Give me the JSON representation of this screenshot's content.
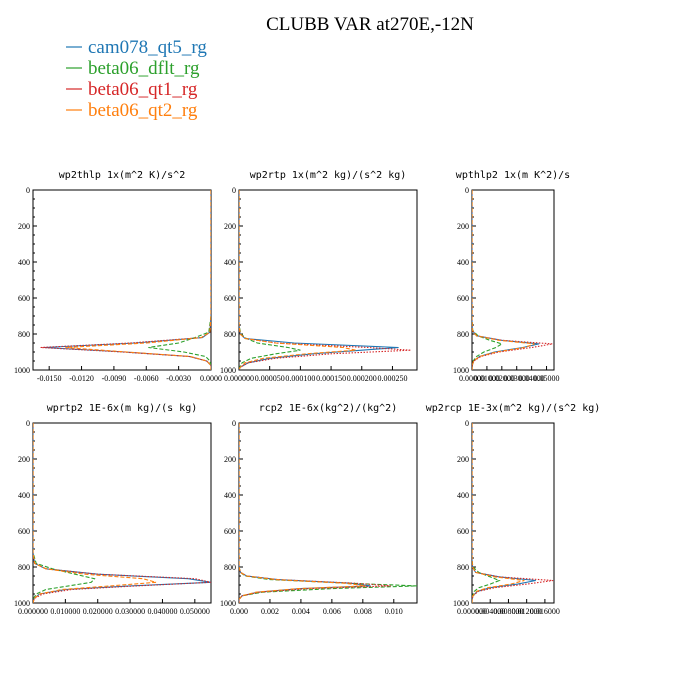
{
  "figure_title": "CLUBB VAR at270E,-12N",
  "legend": [
    {
      "label": "cam078_qt5_rg",
      "color": "#1f77b4"
    },
    {
      "label": "beta06_dflt_rg",
      "color": "#2ca02c"
    },
    {
      "label": "beta06_qt1_rg",
      "color": "#d62728"
    },
    {
      "label": "beta06_qt2_rg",
      "color": "#ff7f0e"
    }
  ],
  "chart_data": [
    {
      "type": "line",
      "title": "wp2thlp  1x(m^2 K)/s^2",
      "xlim": [
        -0.0165,
        0.0
      ],
      "xticks": [
        -0.015,
        -0.012,
        -0.009,
        -0.006,
        -0.003,
        0.0
      ],
      "xtick_labels": [
        "-0.0150",
        "-0.0120",
        "-0.0090",
        "-0.0060",
        "-0.0030",
        "0.0000"
      ],
      "ylim": [
        0,
        1000
      ],
      "yticks": [
        0,
        200,
        400,
        600,
        800,
        1000
      ],
      "ytick_labels": [
        "0",
        "200",
        "400",
        "600",
        "800",
        "1000"
      ],
      "y": [
        0,
        700,
        790,
        820,
        850,
        875,
        900,
        925,
        950,
        975,
        1000
      ],
      "series": [
        {
          "name": "cam078_qt5_rg",
          "values": [
            0,
            0,
            -0.0001,
            -0.0008,
            -0.007,
            -0.0155,
            -0.008,
            -0.002,
            -0.0004,
            0,
            0
          ]
        },
        {
          "name": "beta06_dflt_rg",
          "values": [
            0,
            0,
            -0.0002,
            -0.0015,
            -0.003,
            -0.0058,
            -0.0025,
            -0.0005,
            -0.0001,
            0,
            0
          ]
        },
        {
          "name": "beta06_qt1_rg",
          "values": [
            0,
            0,
            -0.0001,
            -0.0009,
            -0.0075,
            -0.0158,
            -0.0082,
            -0.002,
            -0.0004,
            0,
            0
          ]
        },
        {
          "name": "beta06_qt2_rg",
          "values": [
            0,
            0,
            -0.0001,
            -0.0009,
            -0.006,
            -0.0135,
            -0.0078,
            -0.0019,
            -0.0004,
            0,
            0
          ]
        }
      ]
    },
    {
      "type": "line",
      "title": "wp2rtp  1x(m^2 kg)/(s^2 kg)",
      "xlim": [
        0,
        0.00029
      ],
      "xticks": [
        0,
        5e-05,
        0.0001,
        0.00015,
        0.0002,
        0.00025
      ],
      "xtick_labels": [
        "0.000000",
        "0.000050",
        "0.000100",
        "0.000150",
        "0.000200",
        "0.000250"
      ],
      "ylim": [
        0,
        1000
      ],
      "yticks": [
        0,
        200,
        400,
        600,
        800,
        1000
      ],
      "ytick_labels": [
        "0",
        "200",
        "400",
        "600",
        "800",
        "1000"
      ],
      "y": [
        0,
        750,
        800,
        825,
        850,
        875,
        890,
        910,
        935,
        960,
        985,
        1000
      ],
      "series": [
        {
          "name": "cam078_qt5_rg",
          "values": [
            0,
            0,
            2e-06,
            1e-05,
            9e-05,
            0.00026,
            0.0002,
            0.00012,
            5e-05,
            1.5e-05,
            2e-06,
            0
          ]
        },
        {
          "name": "beta06_dflt_rg",
          "values": [
            0,
            0,
            3e-06,
            1.2e-05,
            3e-05,
            8e-05,
            0.0001,
            6e-05,
            2e-05,
            5e-06,
            1e-06,
            0
          ]
        },
        {
          "name": "beta06_qt1_rg",
          "values": [
            0,
            0,
            2e-06,
            1e-05,
            6e-05,
            0.00021,
            0.00028,
            0.00015,
            6e-05,
            1.5e-05,
            2e-06,
            0
          ]
        },
        {
          "name": "beta06_qt2_rg",
          "values": [
            0,
            0,
            2e-06,
            1e-05,
            6e-05,
            0.00017,
            0.00019,
            0.00011,
            4e-05,
            1e-05,
            2e-06,
            0
          ]
        }
      ]
    },
    {
      "type": "line",
      "title": "wpthlp2  1x(m K^2)/s",
      "xlim": [
        0,
        0.055
      ],
      "xticks": [
        0,
        0.01,
        0.02,
        0.03,
        0.04,
        0.05
      ],
      "xtick_labels": [
        "0.00000",
        "0.01000",
        "0.02000",
        "0.03000",
        "0.04000",
        "0.05000"
      ],
      "ylim": [
        0,
        1000
      ],
      "yticks": [
        0,
        200,
        400,
        600,
        800,
        1000
      ],
      "ytick_labels": [
        "0",
        "200",
        "400",
        "600",
        "800",
        "1000"
      ],
      "y": [
        0,
        720,
        780,
        810,
        835,
        855,
        875,
        900,
        925,
        950,
        975,
        1000
      ],
      "series": [
        {
          "name": "cam078_qt5_rg",
          "values": [
            0,
            0,
            0.0003,
            0.003,
            0.02,
            0.045,
            0.034,
            0.015,
            0.005,
            0.001,
            0.0002,
            0
          ]
        },
        {
          "name": "beta06_dflt_rg",
          "values": [
            0,
            0,
            0.0005,
            0.004,
            0.012,
            0.02,
            0.016,
            0.008,
            0.003,
            0.0008,
            0.0001,
            0
          ]
        },
        {
          "name": "beta06_qt1_rg",
          "values": [
            0,
            0,
            0.0003,
            0.003,
            0.02,
            0.054,
            0.04,
            0.018,
            0.006,
            0.0012,
            0.0002,
            0
          ]
        },
        {
          "name": "beta06_qt2_rg",
          "values": [
            0,
            0,
            0.0003,
            0.003,
            0.018,
            0.042,
            0.035,
            0.016,
            0.005,
            0.001,
            0.0002,
            0
          ]
        }
      ]
    },
    {
      "type": "line",
      "title": "wprtp2  1E-6x(m kg)/(s kg)",
      "xlim": [
        0,
        0.055
      ],
      "xticks": [
        0,
        0.01,
        0.02,
        0.03,
        0.04,
        0.05
      ],
      "xtick_labels": [
        "0.000000",
        "0.010000",
        "0.020000",
        "0.030000",
        "0.040000",
        "0.050000"
      ],
      "ylim": [
        0,
        1000
      ],
      "yticks": [
        0,
        200,
        400,
        600,
        800,
        1000
      ],
      "ytick_labels": [
        "0",
        "200",
        "400",
        "600",
        "800",
        "1000"
      ],
      "y": [
        0,
        720,
        780,
        810,
        840,
        865,
        885,
        905,
        925,
        950,
        975,
        1000
      ],
      "series": [
        {
          "name": "cam078_qt5_rg",
          "values": [
            0,
            0,
            0.0005,
            0.004,
            0.02,
            0.048,
            0.055,
            0.03,
            0.01,
            0.002,
            0.0003,
            0
          ]
        },
        {
          "name": "beta06_dflt_rg",
          "values": [
            0,
            0,
            0.001,
            0.006,
            0.013,
            0.019,
            0.018,
            0.011,
            0.004,
            0.001,
            0.0002,
            0
          ]
        },
        {
          "name": "beta06_qt1_rg",
          "values": [
            0,
            0,
            0.0005,
            0.004,
            0.02,
            0.05,
            0.055,
            0.032,
            0.012,
            0.003,
            0.0004,
            0
          ]
        },
        {
          "name": "beta06_qt2_rg",
          "values": [
            0,
            0,
            0.0005,
            0.004,
            0.016,
            0.034,
            0.038,
            0.024,
            0.009,
            0.002,
            0.0003,
            0
          ]
        }
      ]
    },
    {
      "type": "line",
      "title": "rcp2  1E-6x(kg^2)/(kg^2)",
      "xlim": [
        0,
        0.0115
      ],
      "xticks": [
        0,
        0.002,
        0.004,
        0.006,
        0.008,
        0.01
      ],
      "xtick_labels": [
        "0.000",
        "0.002",
        "0.004",
        "0.006",
        "0.008",
        "0.010"
      ],
      "ylim": [
        0,
        1000
      ],
      "yticks": [
        0,
        200,
        400,
        600,
        800,
        1000
      ],
      "ytick_labels": [
        "0",
        "200",
        "400",
        "600",
        "800",
        "1000"
      ],
      "y": [
        0,
        800,
        830,
        850,
        870,
        890,
        905,
        920,
        940,
        960,
        980,
        1000
      ],
      "series": [
        {
          "name": "cam078_qt5_rg",
          "values": [
            0,
            0,
            0.0001,
            0.0005,
            0.0025,
            0.0072,
            0.0085,
            0.004,
            0.0012,
            0.0002,
            0,
            0
          ]
        },
        {
          "name": "beta06_dflt_rg",
          "values": [
            0,
            0,
            0.0001,
            0.0004,
            0.002,
            0.007,
            0.0115,
            0.006,
            0.0015,
            0.0002,
            0,
            0
          ]
        },
        {
          "name": "beta06_qt1_rg",
          "values": [
            0,
            0,
            0.0001,
            0.0005,
            0.0025,
            0.0075,
            0.0098,
            0.0045,
            0.0013,
            0.0002,
            0,
            0
          ]
        },
        {
          "name": "beta06_qt2_rg",
          "values": [
            0,
            0,
            0.0001,
            0.0005,
            0.0024,
            0.0068,
            0.0082,
            0.0038,
            0.0011,
            0.0002,
            0,
            0
          ]
        }
      ]
    },
    {
      "type": "line",
      "title": "wp2rcp  1E-3x(m^2 kg)/(s^2 kg)",
      "xlim": [
        0,
        0.018
      ],
      "xticks": [
        0,
        0.004,
        0.008,
        0.012,
        0.016
      ],
      "xtick_labels": [
        "0.000000",
        "0.004000",
        "0.008000",
        "0.012000",
        "0.016000"
      ],
      "ylim": [
        0,
        1000
      ],
      "yticks": [
        0,
        200,
        400,
        600,
        800,
        1000
      ],
      "ytick_labels": [
        "0",
        "200",
        "400",
        "600",
        "800",
        "1000"
      ],
      "y": [
        0,
        760,
        800,
        830,
        855,
        875,
        895,
        915,
        935,
        960,
        985,
        1000
      ],
      "series": [
        {
          "name": "cam078_qt5_rg",
          "values": [
            0,
            0,
            0.0001,
            0.0008,
            0.006,
            0.014,
            0.01,
            0.004,
            0.0012,
            0.0002,
            0,
            0
          ]
        },
        {
          "name": "beta06_dflt_rg",
          "values": [
            0,
            0,
            0.0002,
            0.0015,
            0.004,
            0.006,
            0.004,
            0.0015,
            0.0005,
            0.0001,
            0,
            0
          ]
        },
        {
          "name": "beta06_qt1_rg",
          "values": [
            0,
            0,
            0.0001,
            0.0008,
            0.006,
            0.0178,
            0.012,
            0.005,
            0.0014,
            0.0002,
            0,
            0
          ]
        },
        {
          "name": "beta06_qt2_rg",
          "values": [
            0,
            0,
            0.0001,
            0.0008,
            0.005,
            0.0115,
            0.0085,
            0.0035,
            0.001,
            0.0002,
            0,
            0
          ]
        }
      ]
    }
  ]
}
